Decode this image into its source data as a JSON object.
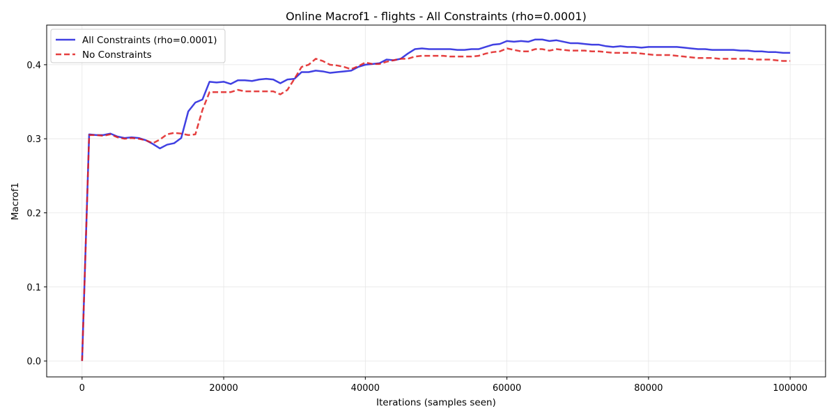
{
  "chart_data": {
    "type": "line",
    "title": "Online Macrof1 - flights - All Constraints (rho=0.0001)",
    "xlabel": "Iterations (samples seen)",
    "ylabel": "Macrof1",
    "xlim": [
      -5000,
      105000
    ],
    "ylim": [
      -0.0215,
      0.4535
    ],
    "x_ticks": [
      0,
      20000,
      40000,
      60000,
      80000,
      100000
    ],
    "y_ticks": [
      0.0,
      0.1,
      0.2,
      0.3,
      0.4
    ],
    "x_tick_labels": [
      "0",
      "20000",
      "40000",
      "60000",
      "80000",
      "100000"
    ],
    "y_tick_labels": [
      "0.0",
      "0.1",
      "0.2",
      "0.3",
      "0.4"
    ],
    "grid": true,
    "legend_position": "top-left",
    "series": [
      {
        "name": "All Constraints (rho=0.0001)",
        "color": "#1f1fdd",
        "style": "solid",
        "x": [
          0,
          1000,
          2000,
          3000,
          4000,
          5000,
          6000,
          7000,
          8000,
          9000,
          10000,
          11000,
          12000,
          13000,
          14000,
          15000,
          16000,
          17000,
          18000,
          19000,
          20000,
          21000,
          22000,
          23000,
          24000,
          25000,
          26000,
          27000,
          28000,
          29000,
          30000,
          31000,
          32000,
          33000,
          34000,
          35000,
          36000,
          37000,
          38000,
          39000,
          40000,
          41000,
          42000,
          43000,
          44000,
          45000,
          46000,
          47000,
          48000,
          49000,
          50000,
          51000,
          52000,
          53000,
          54000,
          55000,
          56000,
          57000,
          58000,
          59000,
          60000,
          61000,
          62000,
          63000,
          64000,
          65000,
          66000,
          67000,
          68000,
          69000,
          70000,
          71000,
          72000,
          73000,
          74000,
          75000,
          76000,
          77000,
          78000,
          79000,
          80000,
          81000,
          82000,
          83000,
          84000,
          85000,
          86000,
          87000,
          88000,
          89000,
          90000,
          91000,
          92000,
          93000,
          94000,
          95000,
          96000,
          97000,
          98000,
          99000,
          100000
        ],
        "y": [
          0.0,
          0.306,
          0.305,
          0.305,
          0.307,
          0.303,
          0.301,
          0.302,
          0.301,
          0.298,
          0.293,
          0.287,
          0.292,
          0.294,
          0.301,
          0.337,
          0.349,
          0.353,
          0.377,
          0.376,
          0.377,
          0.374,
          0.379,
          0.379,
          0.378,
          0.38,
          0.381,
          0.38,
          0.375,
          0.38,
          0.381,
          0.39,
          0.39,
          0.392,
          0.391,
          0.389,
          0.39,
          0.391,
          0.392,
          0.397,
          0.4,
          0.401,
          0.402,
          0.407,
          0.406,
          0.408,
          0.415,
          0.421,
          0.422,
          0.421,
          0.421,
          0.421,
          0.421,
          0.42,
          0.42,
          0.421,
          0.421,
          0.424,
          0.427,
          0.428,
          0.432,
          0.431,
          0.432,
          0.431,
          0.434,
          0.434,
          0.432,
          0.433,
          0.431,
          0.429,
          0.429,
          0.428,
          0.427,
          0.427,
          0.425,
          0.424,
          0.425,
          0.424,
          0.424,
          0.423,
          0.424,
          0.424,
          0.424,
          0.424,
          0.424,
          0.423,
          0.422,
          0.421,
          0.421,
          0.42,
          0.42,
          0.42,
          0.42,
          0.419,
          0.419,
          0.418,
          0.418,
          0.417,
          0.417,
          0.416,
          0.416
        ]
      },
      {
        "name": "No Constraints",
        "color": "#e01f1f",
        "style": "dashed",
        "x": [
          0,
          1000,
          2000,
          3000,
          4000,
          5000,
          6000,
          7000,
          8000,
          9000,
          10000,
          11000,
          12000,
          13000,
          14000,
          15000,
          16000,
          17000,
          18000,
          19000,
          20000,
          21000,
          22000,
          23000,
          24000,
          25000,
          26000,
          27000,
          28000,
          29000,
          30000,
          31000,
          32000,
          33000,
          34000,
          35000,
          36000,
          37000,
          38000,
          39000,
          40000,
          41000,
          42000,
          43000,
          44000,
          45000,
          46000,
          47000,
          48000,
          49000,
          50000,
          51000,
          52000,
          53000,
          54000,
          55000,
          56000,
          57000,
          58000,
          59000,
          60000,
          61000,
          62000,
          63000,
          64000,
          65000,
          66000,
          67000,
          68000,
          69000,
          70000,
          71000,
          72000,
          73000,
          74000,
          75000,
          76000,
          77000,
          78000,
          79000,
          80000,
          81000,
          82000,
          83000,
          84000,
          85000,
          86000,
          87000,
          88000,
          89000,
          90000,
          91000,
          92000,
          93000,
          94000,
          95000,
          96000,
          97000,
          98000,
          99000,
          100000
        ],
        "y": [
          0.0,
          0.305,
          0.305,
          0.304,
          0.306,
          0.302,
          0.3,
          0.301,
          0.3,
          0.298,
          0.294,
          0.299,
          0.306,
          0.308,
          0.307,
          0.305,
          0.306,
          0.339,
          0.363,
          0.363,
          0.363,
          0.363,
          0.366,
          0.364,
          0.364,
          0.364,
          0.364,
          0.364,
          0.36,
          0.366,
          0.381,
          0.397,
          0.4,
          0.408,
          0.405,
          0.4,
          0.399,
          0.397,
          0.394,
          0.398,
          0.403,
          0.401,
          0.401,
          0.404,
          0.406,
          0.408,
          0.408,
          0.411,
          0.412,
          0.412,
          0.412,
          0.412,
          0.411,
          0.411,
          0.411,
          0.411,
          0.412,
          0.415,
          0.417,
          0.418,
          0.422,
          0.42,
          0.418,
          0.418,
          0.421,
          0.421,
          0.419,
          0.421,
          0.42,
          0.419,
          0.419,
          0.419,
          0.418,
          0.418,
          0.417,
          0.416,
          0.416,
          0.416,
          0.416,
          0.415,
          0.414,
          0.413,
          0.413,
          0.413,
          0.412,
          0.411,
          0.41,
          0.409,
          0.409,
          0.409,
          0.408,
          0.408,
          0.408,
          0.408,
          0.408,
          0.407,
          0.407,
          0.407,
          0.406,
          0.405,
          0.405
        ]
      }
    ]
  }
}
